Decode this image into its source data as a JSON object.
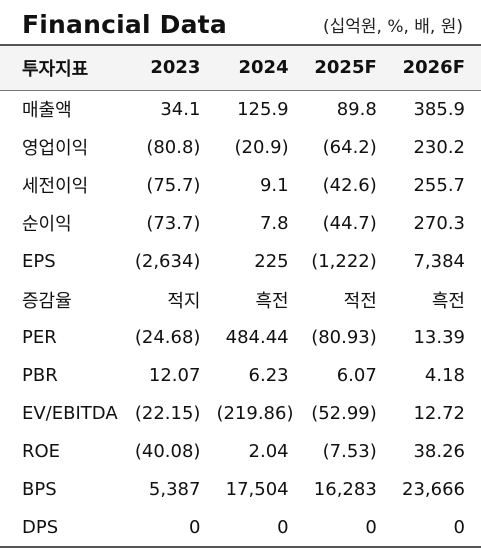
{
  "title": "Financial Data",
  "unit": "(십억원, %, 배, 원)",
  "columns": [
    "투자지표",
    "2023",
    "2024",
    "2025F",
    "2026F"
  ],
  "rows": [
    {
      "label": "매출액",
      "values": [
        "34.1",
        "125.9",
        "89.8",
        "385.9"
      ]
    },
    {
      "label": "영업이익",
      "values": [
        "(80.8)",
        "(20.9)",
        "(64.2)",
        "230.2"
      ]
    },
    {
      "label": "세전이익",
      "values": [
        "(75.7)",
        "9.1",
        "(42.6)",
        "255.7"
      ]
    },
    {
      "label": "순이익",
      "values": [
        "(73.7)",
        "7.8",
        "(44.7)",
        "270.3"
      ]
    },
    {
      "label": "EPS",
      "values": [
        "(2,634)",
        "225",
        "(1,222)",
        "7,384"
      ]
    },
    {
      "label": "증감율",
      "values": [
        "적지",
        "흑전",
        "적전",
        "흑전"
      ]
    },
    {
      "label": "PER",
      "values": [
        "(24.68)",
        "484.44",
        "(80.93)",
        "13.39"
      ]
    },
    {
      "label": "PBR",
      "values": [
        "12.07",
        "6.23",
        "6.07",
        "4.18"
      ]
    },
    {
      "label": "EV/EBITDA",
      "values": [
        "(22.15)",
        "(219.86)",
        "(52.99)",
        "12.72"
      ]
    },
    {
      "label": "ROE",
      "values": [
        "(40.08)",
        "2.04",
        "(7.53)",
        "38.26"
      ]
    },
    {
      "label": "BPS",
      "values": [
        "5,387",
        "17,504",
        "16,283",
        "23,666"
      ]
    },
    {
      "label": "DPS",
      "values": [
        "0",
        "0",
        "0",
        "0"
      ]
    }
  ]
}
